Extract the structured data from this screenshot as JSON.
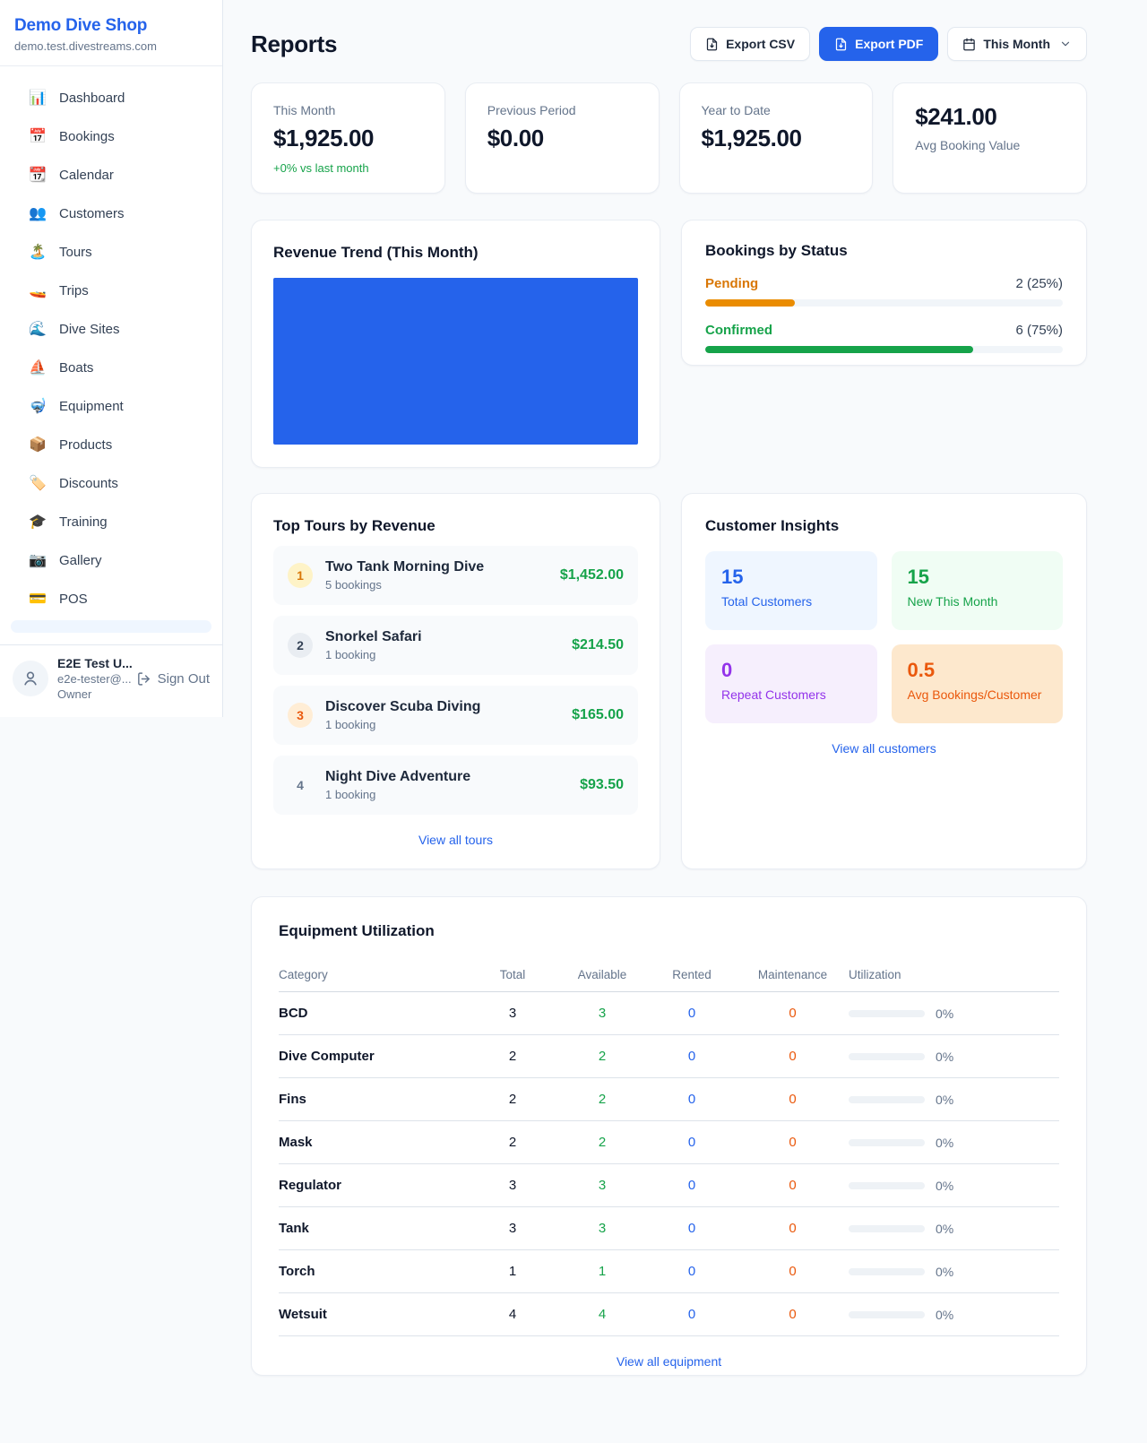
{
  "colors": {
    "accent_blue": "#2563eb",
    "green": "#16a34a",
    "orange_pending": "#d97706",
    "orange_maintenance": "#ea580c",
    "purple": "#9333ea",
    "page_bg": "#f8fafc"
  },
  "sidebar": {
    "brand": {
      "name": "Demo Dive Shop",
      "domain": "demo.test.divestreams.com"
    },
    "nav": [
      {
        "icon": "📊",
        "label": "Dashboard"
      },
      {
        "icon": "📅",
        "label": "Bookings"
      },
      {
        "icon": "📆",
        "label": "Calendar"
      },
      {
        "icon": "👥",
        "label": "Customers"
      },
      {
        "icon": "🏝️",
        "label": "Tours"
      },
      {
        "icon": "🚤",
        "label": "Trips"
      },
      {
        "icon": "🌊",
        "label": "Dive Sites"
      },
      {
        "icon": "⛵",
        "label": "Boats"
      },
      {
        "icon": "🤿",
        "label": "Equipment"
      },
      {
        "icon": "📦",
        "label": "Products"
      },
      {
        "icon": "🏷️",
        "label": "Discounts"
      },
      {
        "icon": "🎓",
        "label": "Training"
      },
      {
        "icon": "📷",
        "label": "Gallery"
      },
      {
        "icon": "💳",
        "label": "POS"
      }
    ],
    "user": {
      "name": "E2E Test U...",
      "email": "e2e-tester@...",
      "role": "Owner",
      "signout_label": "Sign Out"
    }
  },
  "header": {
    "title": "Reports",
    "export_csv_label": "Export CSV",
    "export_pdf_label": "Export PDF",
    "period_label": "This Month"
  },
  "stats": [
    {
      "label": "This Month",
      "value": "$1,925.00",
      "delta": "+0% vs last month"
    },
    {
      "label": "Previous Period",
      "value": "$0.00",
      "delta": ""
    },
    {
      "label": "Year to Date",
      "value": "$1,925.00",
      "delta": ""
    },
    {
      "label": "Avg Booking Value",
      "value": "$241.00",
      "delta": ""
    }
  ],
  "revenue_trend": {
    "title": "Revenue Trend (This Month)",
    "bar_color": "#2563eb",
    "bars": [
      {
        "width_pct": 100,
        "height_pct": 100
      }
    ]
  },
  "bookings_by_status": {
    "title": "Bookings by Status",
    "items": [
      {
        "label": "Pending",
        "count_text": "2 (25%)",
        "pct": 25,
        "color": "#d97706"
      },
      {
        "label": "Confirmed",
        "count_text": "6 (75%)",
        "pct": 75,
        "color": "#16a34a"
      }
    ]
  },
  "top_tours": {
    "title": "Top Tours by Revenue",
    "items": [
      {
        "rank": "1",
        "name": "Two Tank Morning Dive",
        "bookings": "5 bookings",
        "revenue": "$1,452.00"
      },
      {
        "rank": "2",
        "name": "Snorkel Safari",
        "bookings": "1 booking",
        "revenue": "$214.50"
      },
      {
        "rank": "3",
        "name": "Discover Scuba Diving",
        "bookings": "1 booking",
        "revenue": "$165.00"
      },
      {
        "rank": "4",
        "name": "Night Dive Adventure",
        "bookings": "1 booking",
        "revenue": "$93.50"
      }
    ],
    "view_all_label": "View all tours"
  },
  "customer_insights": {
    "title": "Customer Insights",
    "tiles": [
      {
        "value": "15",
        "label": "Total Customers",
        "color": "#2563eb",
        "bg": "#eff6ff"
      },
      {
        "value": "15",
        "label": "New This Month",
        "color": "#16a34a",
        "bg": "#f0fdf4"
      },
      {
        "value": "0",
        "label": "Repeat Customers",
        "color": "#9333ea",
        "bg": "#f6effd"
      },
      {
        "value": "0.5",
        "label": "Avg Bookings/Customer",
        "color": "#ea580c",
        "bg": "#fde8cd"
      }
    ],
    "view_all_label": "View all customers"
  },
  "equipment": {
    "title": "Equipment Utilization",
    "columns": [
      "Category",
      "Total",
      "Available",
      "Rented",
      "Maintenance",
      "Utilization"
    ],
    "rows": [
      {
        "category": "BCD",
        "total": "3",
        "available": "3",
        "rented": "0",
        "maintenance": "0",
        "utilization": "0%",
        "utilization_pct": 0
      },
      {
        "category": "Dive Computer",
        "total": "2",
        "available": "2",
        "rented": "0",
        "maintenance": "0",
        "utilization": "0%",
        "utilization_pct": 0
      },
      {
        "category": "Fins",
        "total": "2",
        "available": "2",
        "rented": "0",
        "maintenance": "0",
        "utilization": "0%",
        "utilization_pct": 0
      },
      {
        "category": "Mask",
        "total": "2",
        "available": "2",
        "rented": "0",
        "maintenance": "0",
        "utilization": "0%",
        "utilization_pct": 0
      },
      {
        "category": "Regulator",
        "total": "3",
        "available": "3",
        "rented": "0",
        "maintenance": "0",
        "utilization": "0%",
        "utilization_pct": 0
      },
      {
        "category": "Tank",
        "total": "3",
        "available": "3",
        "rented": "0",
        "maintenance": "0",
        "utilization": "0%",
        "utilization_pct": 0
      },
      {
        "category": "Torch",
        "total": "1",
        "available": "1",
        "rented": "0",
        "maintenance": "0",
        "utilization": "0%",
        "utilization_pct": 0
      },
      {
        "category": "Wetsuit",
        "total": "4",
        "available": "4",
        "rented": "0",
        "maintenance": "0",
        "utilization": "0%",
        "utilization_pct": 0
      }
    ],
    "view_all_label": "View all equipment"
  }
}
